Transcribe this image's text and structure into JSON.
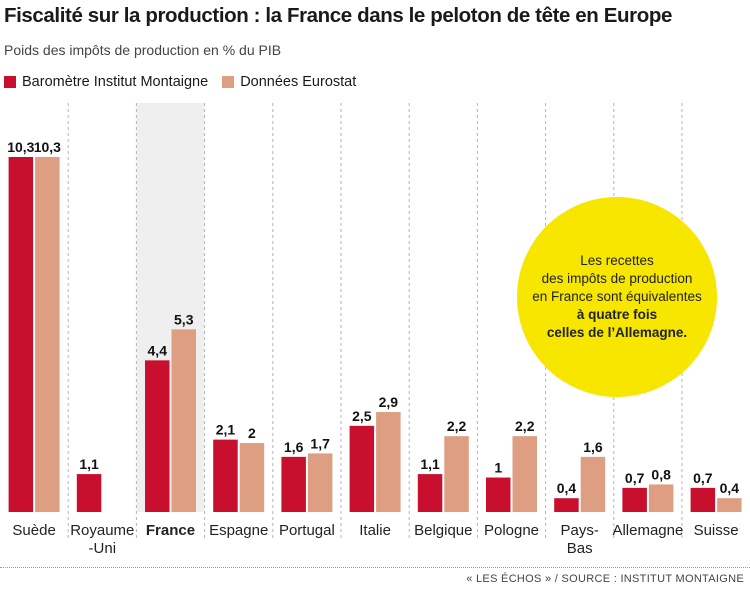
{
  "title": "Fiscalité sur la production : la France dans le peloton de tête en Europe",
  "subtitle": "Poids des impôts de production en % du PIB",
  "legend": [
    {
      "label": "Baromètre Institut Montaigne",
      "color": "#c8102e"
    },
    {
      "label": "Données Eurostat",
      "color": "#dd9e82"
    }
  ],
  "callout": {
    "lines": [
      "Les recettes",
      "des impôts de production",
      "en France sont équivalentes"
    ],
    "bold_lines": [
      "à quatre fois",
      "celles de l’Allemagne."
    ],
    "color": "#f7e600"
  },
  "footer": "« LES ÉCHOS » / SOURCE : INSTITUT MONTAIGNE",
  "chart_data": {
    "type": "bar",
    "categories": [
      "Suède",
      "Royaume\n-Uni",
      "France",
      "Espagne",
      "Portugal",
      "Italie",
      "Belgique",
      "Pologne",
      "Pays-\nBas",
      "Allemagne",
      "Suisse"
    ],
    "highlight_category": "France",
    "highlight_color": "#efefef",
    "series": [
      {
        "name": "Baromètre Institut Montaigne",
        "color": "#c8102e",
        "values": [
          10.3,
          1.1,
          4.4,
          2.1,
          1.6,
          2.5,
          1.1,
          1.0,
          0.4,
          0.7,
          0.7
        ],
        "labels": [
          "10,3",
          "1,1",
          "4,4",
          "2,1",
          "1,6",
          "2,5",
          "1,1",
          "1",
          "0,4",
          "0,7",
          "0,7"
        ]
      },
      {
        "name": "Données Eurostat",
        "color": "#dd9e82",
        "values": [
          10.3,
          null,
          5.3,
          2.0,
          1.7,
          2.9,
          2.2,
          2.2,
          1.6,
          0.8,
          0.4
        ],
        "labels": [
          "10,3",
          "",
          "5,3",
          "2",
          "1,7",
          "2,9",
          "2,2",
          "2,2",
          "1,6",
          "0,8",
          "0,4"
        ]
      }
    ],
    "ylim": [
      0,
      10.3
    ],
    "grid": "vertical dashed separators",
    "legend_position": "top-left"
  }
}
